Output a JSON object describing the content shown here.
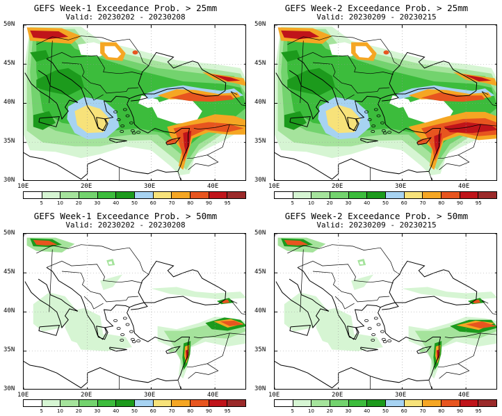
{
  "panels": [
    {
      "title": "GEFS Week-1 Exceedance Prob. > 25mm",
      "valid": "Valid: 20230202 - 20230208",
      "threshold": 25
    },
    {
      "title": "GEFS Week-2 Exceedance Prob. > 25mm",
      "valid": "Valid: 20230209 - 20230215",
      "threshold": 25
    },
    {
      "title": "GEFS Week-1 Exceedance Prob. > 50mm",
      "valid": "Valid: 20230202 - 20230208",
      "threshold": 50
    },
    {
      "title": "GEFS Week-2 Exceedance Prob. > 50mm",
      "valid": "Valid: 20230209 - 20230215",
      "threshold": 50
    }
  ],
  "map": {
    "lat_labels": [
      "50N",
      "45N",
      "40N",
      "35N",
      "30N"
    ],
    "lon_labels": [
      "10E",
      "20E",
      "30E",
      "40E"
    ],
    "gridlines": "dotted"
  },
  "colorbar": {
    "levels": [
      "5",
      "10",
      "20",
      "30",
      "40",
      "50",
      "60",
      "70",
      "80",
      "90",
      "95"
    ],
    "colors": [
      "#ffffff",
      "#d6f5d3",
      "#a5e39c",
      "#73d36e",
      "#3cbc3c",
      "#1c9a1c",
      "#a7d3f2",
      "#f7e27a",
      "#f5a623",
      "#e7551f",
      "#c0141a",
      "#9b2a2a"
    ]
  }
}
